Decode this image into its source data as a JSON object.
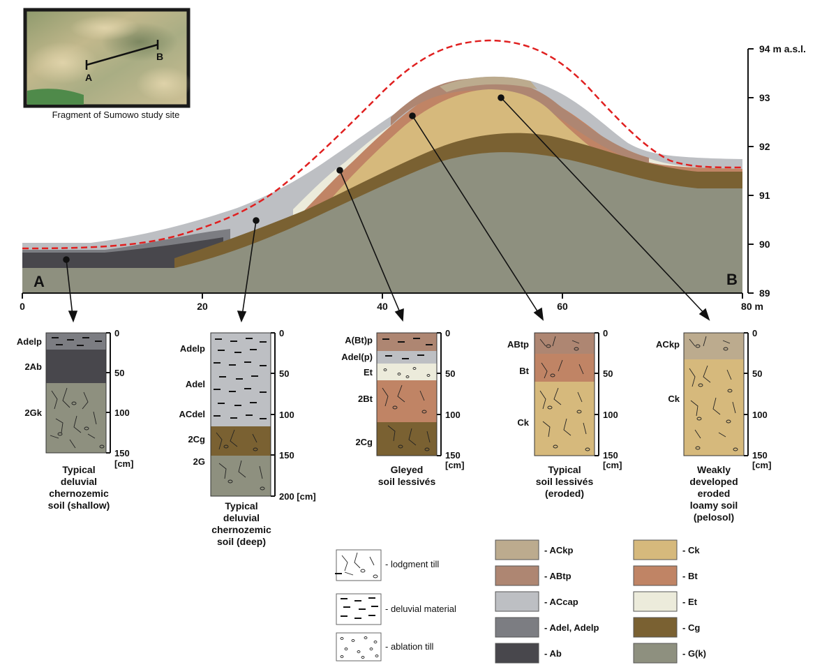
{
  "inset": {
    "caption": "Fragment of Sumowo study site",
    "label_a": "A",
    "label_b": "B"
  },
  "transect": {
    "label_start": "A",
    "label_end": "B",
    "x_ticks": [
      "0",
      "20",
      "40",
      "60",
      "80 m"
    ],
    "y_ticks": [
      "94 m a.s.l.",
      "93",
      "92",
      "91",
      "90",
      "89"
    ]
  },
  "profiles": [
    {
      "name": "Typical deluvial chernozemic soil (shallow)",
      "caption": [
        "Typical",
        "deluvial",
        "chernozemic",
        "soil (shallow)"
      ],
      "horizons": [
        "Adelp",
        "2Ab",
        "2Gk"
      ],
      "depth_ticks": [
        "0",
        "50",
        "100",
        "150"
      ],
      "depth_unit": "[cm]"
    },
    {
      "name": "Typical deluvial chernozemic soil (deep)",
      "caption": [
        "Typical",
        "deluvial",
        "chernozemic",
        "soil (deep)"
      ],
      "horizons": [
        "Adelp",
        "Adel",
        "ACdel",
        "2Cg",
        "2G"
      ],
      "depth_ticks": [
        "0",
        "50",
        "100",
        "150",
        "200 [cm]"
      ],
      "depth_unit": ""
    },
    {
      "name": "Gleyed soil lessivés",
      "caption": [
        "Gleyed",
        "soil lessivés"
      ],
      "horizons": [
        "A(Bt)p",
        "Adel(p)",
        "Et",
        "2Bt",
        "2Cg"
      ],
      "depth_ticks": [
        "0",
        "50",
        "100",
        "150"
      ],
      "depth_unit": "[cm]"
    },
    {
      "name": "Typical soil lessivés (eroded)",
      "caption": [
        "Typical",
        "soil lessivés",
        "(eroded)"
      ],
      "horizons": [
        "ABtp",
        "Bt",
        "Ck"
      ],
      "depth_ticks": [
        "0",
        "50",
        "100",
        "150"
      ],
      "depth_unit": "[cm]"
    },
    {
      "name": "Weakly developed eroded loamy soil (pelosol)",
      "caption": [
        "Weakly",
        "developed",
        "eroded",
        "loamy soil",
        "(pelosol)"
      ],
      "horizons": [
        "ACkp",
        "Ck"
      ],
      "depth_ticks": [
        "0",
        "50",
        "100",
        "150"
      ],
      "depth_unit": "[cm]"
    }
  ],
  "legend": {
    "patterns": [
      {
        "label": "- lodgment till"
      },
      {
        "label": "- deluvial material"
      },
      {
        "label": "- ablation till"
      }
    ],
    "colors": [
      {
        "label": "- ACkp",
        "color": "#bcab8e"
      },
      {
        "label": "- Ck",
        "color": "#d6b97c"
      },
      {
        "label": "- ABtp",
        "color": "#ae8672"
      },
      {
        "label": "- Bt",
        "color": "#c08465"
      },
      {
        "label": "- ACcap",
        "color": "#bdbfc3"
      },
      {
        "label": "- Et",
        "color": "#ecebdb"
      },
      {
        "label": "- Adel, Adelp",
        "color": "#7c7d82"
      },
      {
        "label": "- Cg",
        "color": "#7a6132"
      },
      {
        "label": "- Ab",
        "color": "#48474c"
      },
      {
        "label": "- G(k)",
        "color": "#8e907f"
      }
    ]
  }
}
